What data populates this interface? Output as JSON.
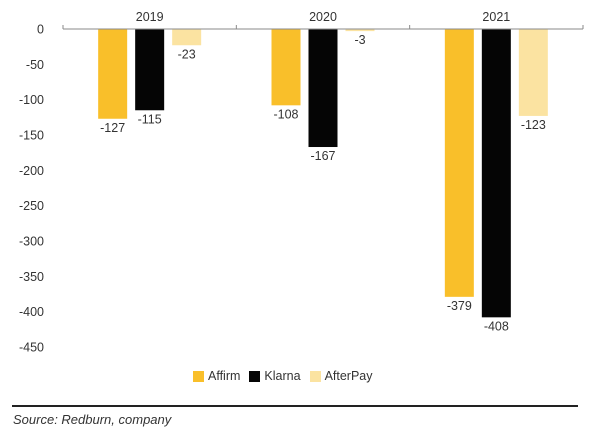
{
  "chart_data": {
    "type": "bar",
    "categories": [
      "2019",
      "2020",
      "2021"
    ],
    "series": [
      {
        "name": "Affirm",
        "color": "#f9bf2a",
        "values": [
          -127,
          -108,
          -379
        ]
      },
      {
        "name": "Klarna",
        "color": "#050505",
        "values": [
          -115,
          -167,
          -408
        ]
      },
      {
        "name": "AfterPay",
        "color": "#fbe3a1",
        "values": [
          -23,
          -3,
          -123
        ]
      }
    ],
    "y_ticks": [
      "0",
      "-50",
      "-100",
      "-150",
      "-200",
      "-250",
      "-300",
      "-350",
      "-400",
      "-450"
    ],
    "ylim": [
      -450,
      0
    ],
    "x_axis_position": "top",
    "legend_position": "bottom-center",
    "grid": false
  },
  "legend": {
    "items": [
      {
        "label": "Affirm",
        "color": "#f9bf2a"
      },
      {
        "label": "Klarna",
        "color": "#050505"
      },
      {
        "label": "AfterPay",
        "color": "#fbe3a1"
      }
    ]
  },
  "source": "Source: Redburn, company"
}
